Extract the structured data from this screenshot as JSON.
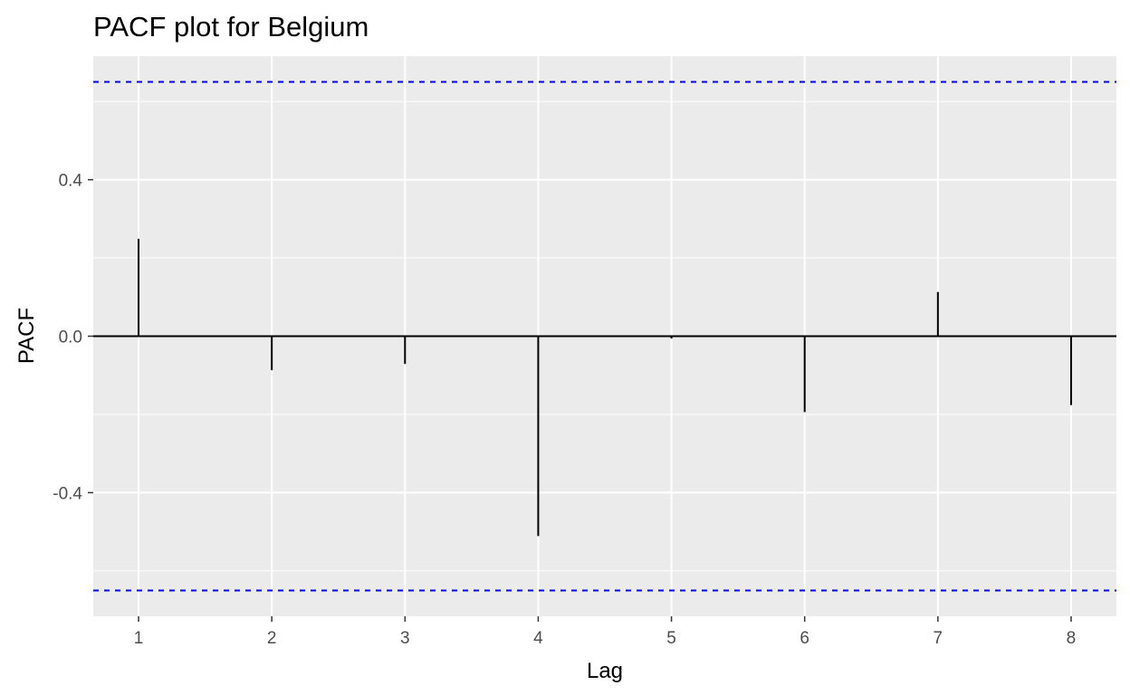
{
  "chart_data": {
    "type": "bar",
    "title": "PACF plot for Belgium",
    "xlabel": "Lag",
    "ylabel": "PACF",
    "x": [
      1,
      2,
      3,
      4,
      5,
      6,
      7,
      8
    ],
    "values": [
      0.249,
      -0.087,
      -0.071,
      -0.511,
      -0.006,
      -0.194,
      0.113,
      -0.176
    ],
    "xlim": [
      0.66,
      8.34
    ],
    "ylim": [
      -0.716,
      0.716
    ],
    "x_ticks": [
      "1",
      "2",
      "3",
      "4",
      "5",
      "6",
      "7",
      "8"
    ],
    "y_ticks": [
      "-0.4",
      "0.0",
      "0.4"
    ],
    "y_tick_values": [
      -0.4,
      0.0,
      0.4
    ],
    "confidence_bound": 0.65,
    "grid": true,
    "colors": {
      "panel_background": "#ebebeb",
      "grid": "#ffffff",
      "bars": "#000000",
      "confidence_lines": "#0000ff"
    }
  }
}
